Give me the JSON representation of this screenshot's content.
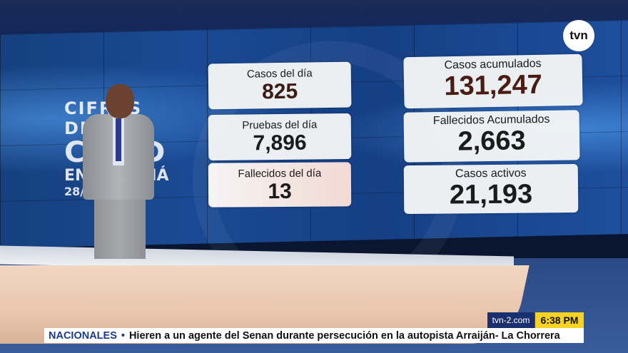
{
  "background_title": {
    "line1": "CIFRAS DEL",
    "line2": "COVID",
    "line3": "EN PANAMÁ",
    "line4": "28/12/2020"
  },
  "stats": {
    "casos_del_dia": {
      "label": "Casos del día",
      "value": "825"
    },
    "pruebas_del_dia": {
      "label": "Pruebas del día",
      "value": "7,896"
    },
    "fallecidos_del_dia": {
      "label": "Fallecidos del día",
      "value": "13"
    },
    "casos_acumulados": {
      "label": "Casos acumulados",
      "value": "131,247"
    },
    "fallecidos_acumulados": {
      "label": "Fallecidos Acumulados",
      "value": "2,663"
    },
    "casos_activos": {
      "label": "Casos activos",
      "value": "21,193"
    }
  },
  "branding": {
    "logo_text": "tvn",
    "website": "tvn-2.com",
    "time": "6:38 PM"
  },
  "ticker": {
    "section": "NACIONALES",
    "bullet": "•",
    "headline": "Hieren a un agente del Senan durante persecución en la autopista Arraiján- La Chorrera"
  },
  "colors": {
    "ticker_section": "#1b3b8c",
    "clock_background": "#f7d321",
    "website_background": "#1b2f6e"
  }
}
